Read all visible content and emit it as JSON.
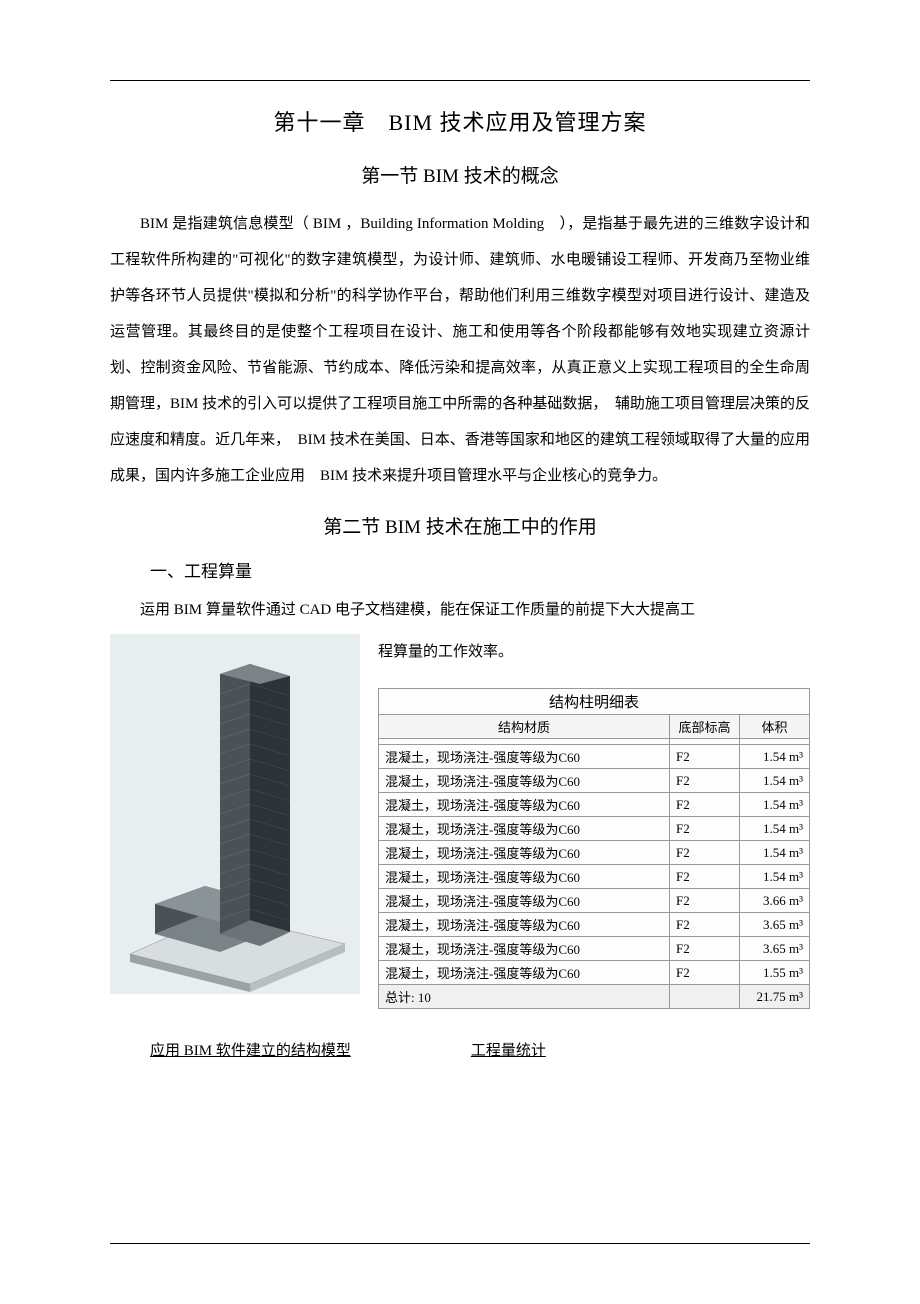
{
  "chapter_title": "第十一章　BIM 技术应用及管理方案",
  "section1_title": "第一节 BIM 技术的概念",
  "para1": "BIM 是指建筑信息模型（ BIM ，Building Information Molding　），是指基于最先进的三维数字设计和工程软件所构建的\"可视化\"的数字建筑模型，为设计师、建筑师、水电暖铺设工程师、开发商乃至物业维护等各环节人员提供\"模拟和分析\"的科学协作平台，帮助他们利用三维数字模型对项目进行设计、建造及运营管理。其最终目的是使整个工程项目在设计、施工和使用等各个阶段都能够有效地实现建立资源计划、控制资金风险、节省能源、节约成本、降低污染和提高效率，从真正意义上实现工程项目的全生命周期管理，BIM 技术的引入可以提供了工程项目施工中所需的各种基础数据，　辅助施工项目管理层决策的反应速度和精度。近几年来，　BIM 技术在美国、日本、香港等国家和地区的建筑工程领域取得了大量的应用成果，国内许多施工企业应用　BIM 技术来提升项目管理水平与企业核心的竞争力。",
  "section2_title": "第二节 BIM 技术在施工中的作用",
  "subsection1": "一、工程算量",
  "para2a": "运用 BIM 算量软件通过 CAD 电子文档建模，能在保证工作质量的前提下大大提高工",
  "para2b": "程算量的工作效率。",
  "table": {
    "title": "结构柱明细表",
    "headers": [
      "结构材质",
      "底部标高",
      "体积"
    ],
    "rows": [
      [
        "混凝土，现场浇注-强度等级为C60",
        "F2",
        "1.54 m³"
      ],
      [
        "混凝土，现场浇注-强度等级为C60",
        "F2",
        "1.54 m³"
      ],
      [
        "混凝土，现场浇注-强度等级为C60",
        "F2",
        "1.54 m³"
      ],
      [
        "混凝土，现场浇注-强度等级为C60",
        "F2",
        "1.54 m³"
      ],
      [
        "混凝土，现场浇注-强度等级为C60",
        "F2",
        "1.54 m³"
      ],
      [
        "混凝土，现场浇注-强度等级为C60",
        "F2",
        "1.54 m³"
      ],
      [
        "混凝土，现场浇注-强度等级为C60",
        "F2",
        "3.66 m³"
      ],
      [
        "混凝土，现场浇注-强度等级为C60",
        "F2",
        "3.65 m³"
      ],
      [
        "混凝土，现场浇注-强度等级为C60",
        "F2",
        "3.65 m³"
      ],
      [
        "混凝土，现场浇注-强度等级为C60",
        "F2",
        "1.55 m³"
      ]
    ],
    "total_label": "总计: 10",
    "total_value": "21.75 m³"
  },
  "caption_left": "应用 BIM 软件建立的结构模型",
  "caption_right": "工程量统计",
  "model": {
    "bg": "#e8edf0",
    "base_light": "#d8dde0",
    "base_dark": "#9aa2a6",
    "tower_light": "#6b7478",
    "tower_mid": "#4a5256",
    "tower_dark": "#2d3336",
    "podium_light": "#7a8388",
    "podium_dark": "#3a4146"
  }
}
